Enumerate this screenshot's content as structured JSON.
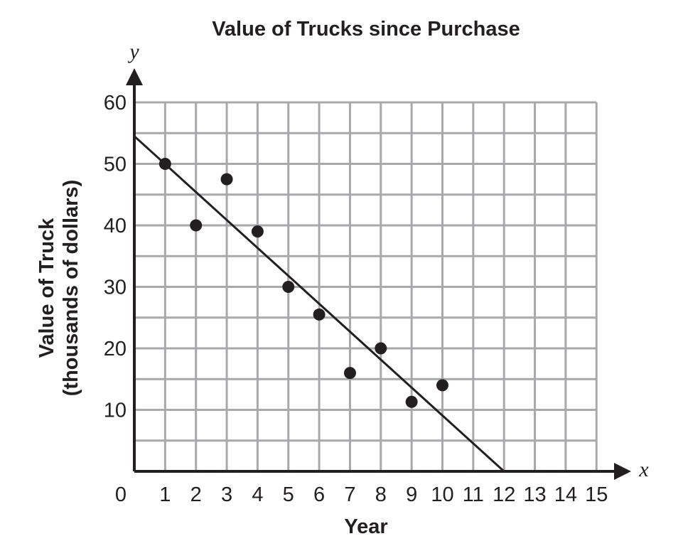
{
  "chart_data": {
    "type": "scatter",
    "title": "Value of Trucks since Purchase",
    "xlabel": "Year",
    "ylabel_line1": "Value of Truck",
    "ylabel_line2": "(thousands of dollars)",
    "x_axis_letter": "x",
    "y_axis_letter": "y",
    "xlim": [
      0,
      15
    ],
    "ylim": [
      0,
      60
    ],
    "x_tick_labels": [
      "0",
      "1",
      "2",
      "3",
      "4",
      "5",
      "6",
      "7",
      "8",
      "9",
      "10",
      "11",
      "12",
      "13",
      "14",
      "15"
    ],
    "y_tick_labels": [
      "10",
      "20",
      "30",
      "40",
      "50",
      "60"
    ],
    "grid": true,
    "points": [
      {
        "x": 1,
        "y": 50
      },
      {
        "x": 2,
        "y": 40
      },
      {
        "x": 3,
        "y": 47.5
      },
      {
        "x": 4,
        "y": 39
      },
      {
        "x": 5,
        "y": 30
      },
      {
        "x": 6,
        "y": 25.5
      },
      {
        "x": 7,
        "y": 16
      },
      {
        "x": 8,
        "y": 20
      },
      {
        "x": 9,
        "y": 11.3
      },
      {
        "x": 10,
        "y": 14
      }
    ],
    "trend_line": {
      "x": [
        0,
        12
      ],
      "y": [
        54.5,
        0
      ]
    }
  }
}
